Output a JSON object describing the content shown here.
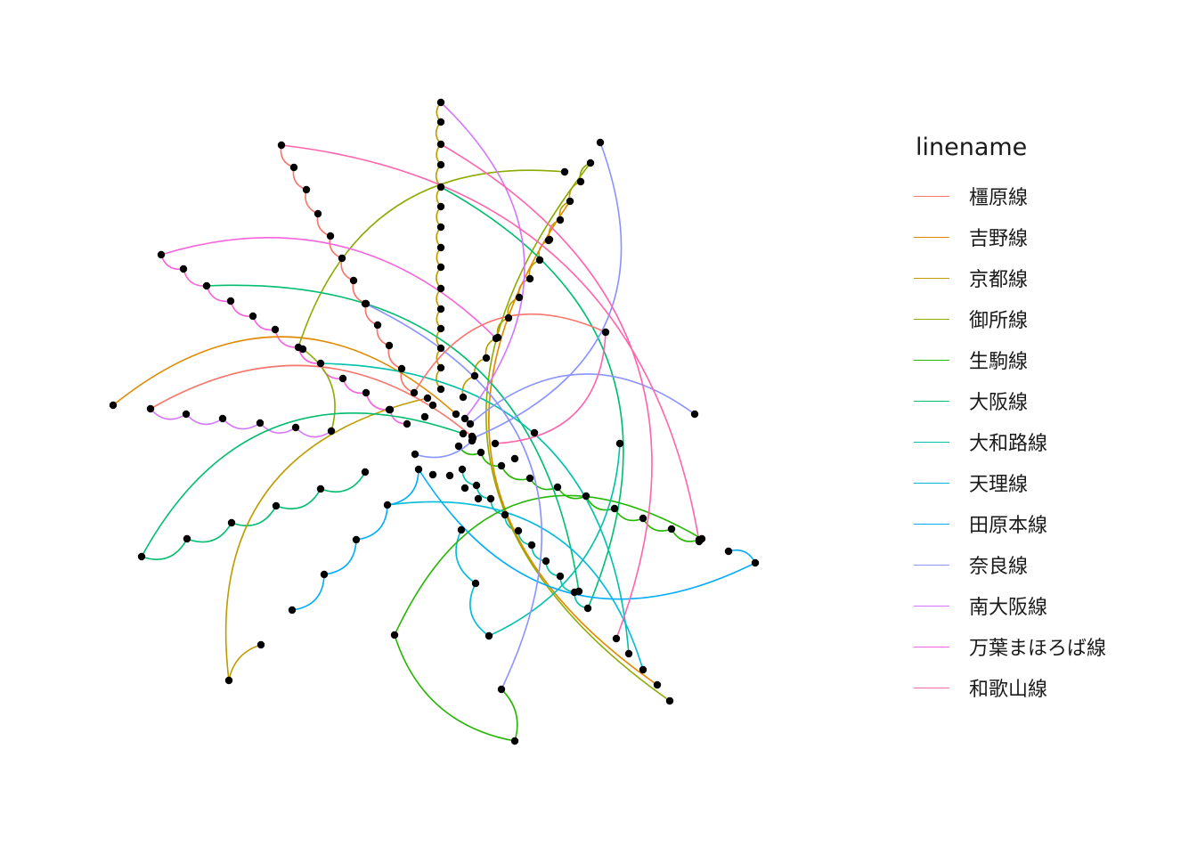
{
  "legend": {
    "title": "linename",
    "items": [
      {
        "label": "橿原線",
        "color": "#F8766D"
      },
      {
        "label": "吉野線",
        "color": "#E18A00"
      },
      {
        "label": "京都線",
        "color": "#BE9C00"
      },
      {
        "label": "御所線",
        "color": "#8CAB00"
      },
      {
        "label": "生駒線",
        "color": "#24B700"
      },
      {
        "label": "大阪線",
        "color": "#00BE70"
      },
      {
        "label": "大和路線",
        "color": "#00C1AB"
      },
      {
        "label": "天理線",
        "color": "#00BBDA"
      },
      {
        "label": "田原本線",
        "color": "#00ACFC"
      },
      {
        "label": "奈良線",
        "color": "#8B93FF"
      },
      {
        "label": "南大阪線",
        "color": "#D575FE"
      },
      {
        "label": "万葉まほろば線",
        "color": "#F962DD"
      },
      {
        "label": "和歌山線",
        "color": "#FF65AC"
      }
    ]
  },
  "node_color": "#000000"
}
